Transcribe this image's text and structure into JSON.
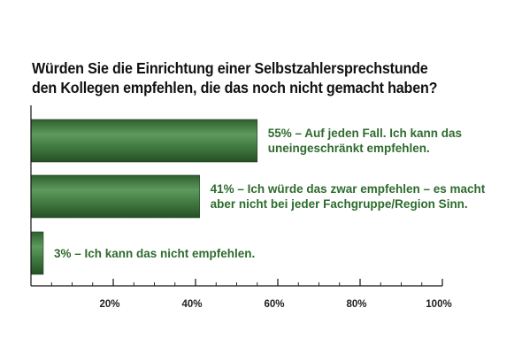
{
  "title": {
    "line1": "Würden Sie die Einrichtung einer Selbstzahlersprechstunde",
    "line2": "den Kollegen empfehlen, die das noch nicht gemacht haben?"
  },
  "chart_data": {
    "type": "bar",
    "orientation": "horizontal",
    "categories": [
      "Auf jeden Fall. Ich kann das uneingeschränkt empfehlen.",
      "Ich würde das zwar empfehlen – es macht aber nicht bei jeder Fachgruppe/Region Sinn.",
      "Ich kann das nicht empfehlen."
    ],
    "values": [
      55,
      41,
      3
    ],
    "data_labels": [
      [
        "55% – Auf jeden Fall. Ich kann das",
        "uneingeschränkt empfehlen."
      ],
      [
        "41% – Ich würde das zwar empfehlen – es macht",
        "aber nicht bei jeder Fachgruppe/Region Sinn."
      ],
      [
        "3% – Ich kann das nicht empfehlen."
      ]
    ],
    "xlim": [
      0,
      100
    ],
    "xticks": [
      20,
      40,
      60,
      80,
      100
    ],
    "xtick_labels": [
      "20%",
      "40%",
      "60%",
      "80%",
      "100%"
    ],
    "grid": false,
    "bar_color": "#3f7a3f",
    "label_color": "#2e6b2e"
  }
}
